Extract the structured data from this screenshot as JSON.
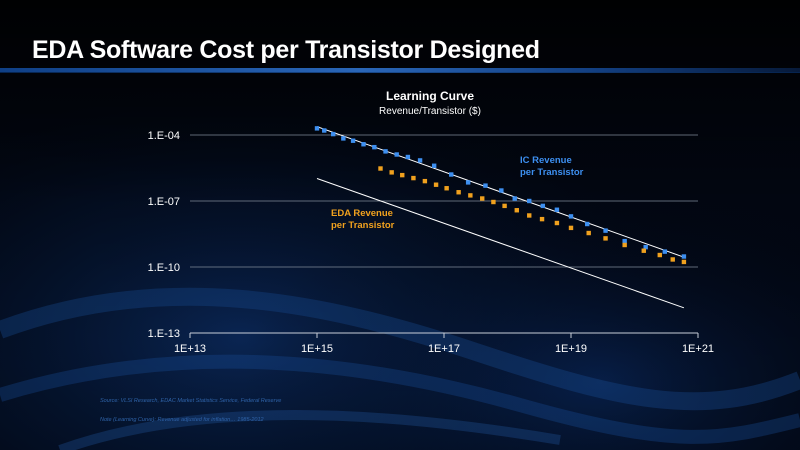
{
  "slide": {
    "title": "EDA Software Cost per Transistor Designed",
    "source_note": "Source:  VLSI Research, EDAC Market Statistics Service, Federal Reserve",
    "adjustment_note": "Note (Learning Curve): Revenue adjusted for inflation… 1985-2012"
  },
  "colors": {
    "background": "#020510",
    "ic_series": "#3d8ff0",
    "eda_series": "#f0a11e",
    "trendline": "#ffffff",
    "gridline": "#7f8a99"
  },
  "chart_data": {
    "type": "scatter",
    "title": "Learning Curve",
    "subtitle": "Revenue/Transistor  ($)",
    "x_scale": "log",
    "y_scale": "log",
    "xlim": [
      10000000000000.0,
      1e+21
    ],
    "ylim": [
      1e-13,
      0.0001
    ],
    "x_ticks": [
      10000000000000.0,
      1000000000000000.0,
      1e+17,
      1e+19,
      1e+21
    ],
    "x_tick_labels": [
      "1E+13",
      "1E+15",
      "1E+17",
      "1E+19",
      "1E+21"
    ],
    "y_ticks": [
      1e-13,
      1e-10,
      1e-07,
      0.0001
    ],
    "y_tick_labels": [
      "1.E-13",
      "1.E-10",
      "1.E-07",
      "1.E-04"
    ],
    "grid": "horizontal",
    "series": [
      {
        "name": "IC Revenue per Transistor",
        "label_line1": "IC Revenue",
        "label_line2": "per Transistor",
        "x": [
          1000000000000000.0,
          1300000000000000.0,
          1800000000000000.0,
          2600000000000000.0,
          3700000000000000.0,
          5400000000000000.0,
          8000000000000000.0,
          1.2e+16,
          1.8e+16,
          2.7e+16,
          4.2e+16,
          7e+16,
          1.3e+17,
          2.4e+17,
          4.5e+17,
          8e+17,
          1.3e+18,
          2.2e+18,
          3.6e+18,
          6e+18,
          1e+19,
          1.8e+19,
          3.5e+19,
          7e+19,
          1.5e+20,
          3e+20,
          6e+20
        ],
        "y": [
          0.0002,
          0.00016,
          0.00011,
          7e-05,
          5.5e-05,
          3.8e-05,
          2.8e-05,
          1.8e-05,
          1.3e-05,
          1e-05,
          7e-06,
          4e-06,
          1.6e-06,
          7e-07,
          5e-07,
          3e-07,
          1.3e-07,
          1e-07,
          6e-08,
          4e-08,
          2e-08,
          9e-09,
          4.5e-09,
          1.5e-09,
          8e-10,
          5e-10,
          3e-10
        ],
        "trendline": {
          "x": [
            1000000000000000.0,
            6e+20
          ],
          "y": [
            0.00024,
            2.8e-10
          ]
        }
      },
      {
        "name": "EDA Revenue per Transistor",
        "label_line1": "EDA Revenue",
        "label_line2": "per Transistor",
        "x": [
          1e+16,
          1.5e+16,
          2.2e+16,
          3.3e+16,
          5e+16,
          7.5e+16,
          1.1e+17,
          1.7e+17,
          2.6e+17,
          4e+17,
          6e+17,
          9e+17,
          1.4e+18,
          2.2e+18,
          3.5e+18,
          6e+18,
          1e+19,
          1.9e+19,
          3.5e+19,
          7e+19,
          1.4e+20,
          2.5e+20,
          4e+20,
          6e+20
        ],
        "y": [
          3e-06,
          2e-06,
          1.5e-06,
          1.1e-06,
          8e-07,
          5.5e-07,
          3.8e-07,
          2.5e-07,
          1.8e-07,
          1.3e-07,
          9e-08,
          6e-08,
          3.8e-08,
          2.2e-08,
          1.5e-08,
          1e-08,
          6e-09,
          3.5e-09,
          2e-09,
          1e-09,
          5.5e-10,
          3.5e-10,
          2.2e-10,
          1.7e-10
        ],
        "trendline": {
          "x": [
            1000000000000000.0,
            6e+20
          ],
          "y": [
            1.05e-06,
            1.4e-12
          ]
        }
      }
    ]
  }
}
